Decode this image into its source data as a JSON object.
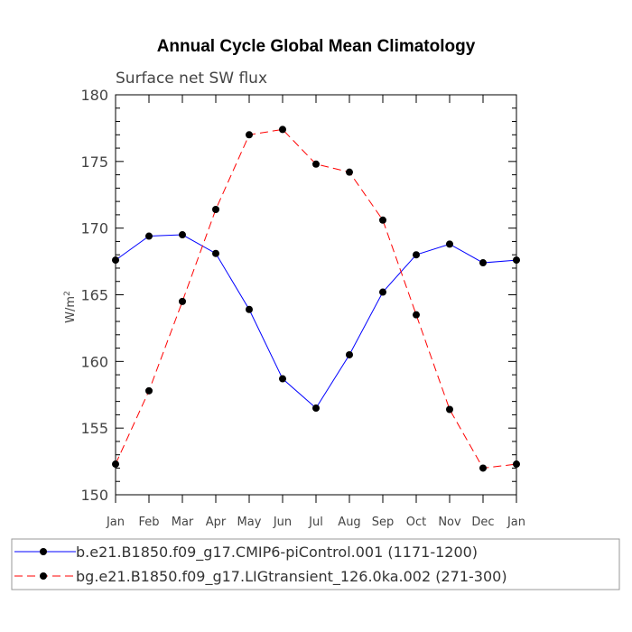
{
  "chart_data": {
    "type": "line",
    "title": "Annual Cycle Global Mean Climatology",
    "subtitle": "Surface net SW flux",
    "ylabel": "W/m",
    "ylabel_superscript": "2",
    "xlabel": "",
    "categories": [
      "Jan",
      "Feb",
      "Mar",
      "Apr",
      "May",
      "Jun",
      "Jul",
      "Aug",
      "Sep",
      "Oct",
      "Nov",
      "Dec",
      "Jan"
    ],
    "ylim": [
      150,
      180
    ],
    "yticks": [
      150,
      155,
      160,
      165,
      170,
      175,
      180
    ],
    "grid": false,
    "legend_placement": "bottom",
    "series": [
      {
        "name": "b.e21.B1850.f09_g17.CMIP6-piControl.001 (1171-1200)",
        "color": "#0000ff",
        "dash": "solid",
        "values": [
          167.6,
          169.4,
          169.5,
          168.1,
          163.9,
          158.7,
          156.5,
          160.5,
          165.2,
          168.0,
          168.8,
          167.4,
          167.6
        ]
      },
      {
        "name": "bg.e21.B1850.f09_g17.LIGtransient_126.0ka.002 (271-300)",
        "color": "#ff0000",
        "dash": "dashed",
        "values": [
          152.3,
          157.8,
          164.5,
          171.4,
          177.0,
          177.4,
          174.8,
          174.2,
          170.6,
          163.5,
          156.4,
          152.0,
          152.3
        ]
      }
    ]
  }
}
